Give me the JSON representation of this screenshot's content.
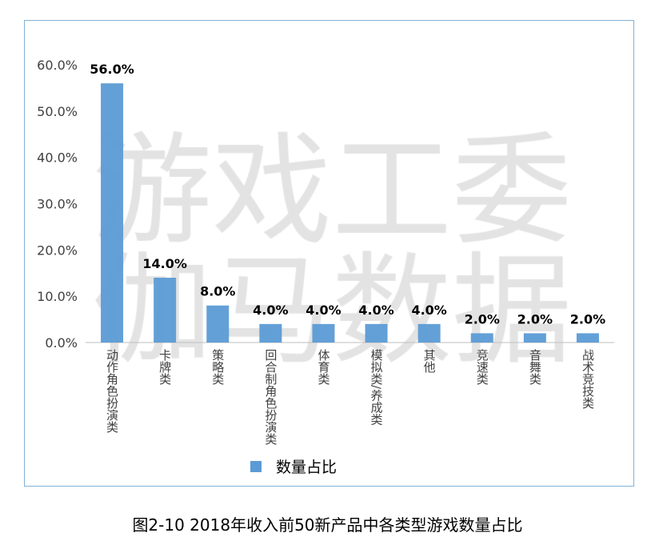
{
  "chart_data": {
    "type": "bar",
    "title": "",
    "categories": [
      "动作角色扮演类",
      "卡牌类",
      "策略类",
      "回合制角色扮演类",
      "体育类",
      "模拟类/养成类",
      "其他",
      "竞速类",
      "音舞类",
      "战术竞技类"
    ],
    "series": [
      {
        "name": "数量占比",
        "values": [
          56.0,
          14.0,
          8.0,
          4.0,
          4.0,
          4.0,
          4.0,
          2.0,
          2.0,
          2.0
        ]
      }
    ],
    "data_labels": [
      "56.0%",
      "14.0%",
      "8.0%",
      "4.0%",
      "4.0%",
      "4.0%",
      "4.0%",
      "2.0%",
      "2.0%",
      "2.0%"
    ],
    "yticks": [
      "0.0%",
      "10.0%",
      "20.0%",
      "30.0%",
      "40.0%",
      "50.0%",
      "60.0%"
    ],
    "ylim": [
      0,
      60
    ],
    "xlabel": "",
    "ylabel": "",
    "grid": false,
    "legend": "bottom",
    "bar_color": "#5b9bd5"
  },
  "watermark": [
    "游戏工委",
    "伽马数据"
  ],
  "caption": "图2-10 2018年收入前50新产品中各类型游戏数量占比"
}
